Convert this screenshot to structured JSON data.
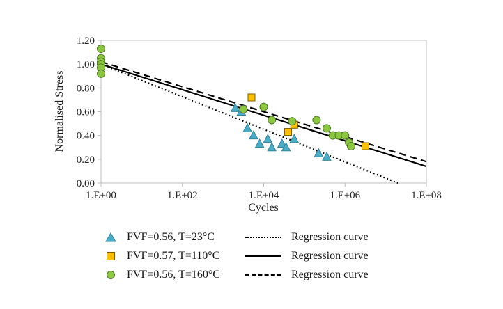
{
  "axes": {
    "x_title": "Cycles",
    "y_title": "Normalised Stress"
  },
  "chart_data": {
    "type": "scatter",
    "x_scale": "log10",
    "x_log_range": [
      0,
      8
    ],
    "ylim": [
      0,
      1.2
    ],
    "grid": false,
    "border_color": "#BFBFBF",
    "x_ticks": [
      {
        "log": 0,
        "label": "1.E+00"
      },
      {
        "log": 2,
        "label": "1.E+02"
      },
      {
        "log": 4,
        "label": "1.E+04"
      },
      {
        "log": 6,
        "label": "1.E+06"
      },
      {
        "log": 8,
        "label": "1.E+08"
      }
    ],
    "y_ticks": [
      {
        "value": 0.0,
        "label": "0.00"
      },
      {
        "value": 0.2,
        "label": "0.20"
      },
      {
        "value": 0.4,
        "label": "0.40"
      },
      {
        "value": 0.6,
        "label": "0.60"
      },
      {
        "value": 0.8,
        "label": "0.80"
      },
      {
        "value": 1.0,
        "label": "1.00"
      },
      {
        "value": 1.2,
        "label": "1.20"
      }
    ],
    "series": [
      {
        "name": "FVF=0.56, T=23°C",
        "marker": "triangle",
        "fill": "#4BACC6",
        "stroke": "#31859C",
        "points_log_x_y": [
          [
            3.3,
            0.63
          ],
          [
            3.45,
            0.6
          ],
          [
            3.6,
            0.46
          ],
          [
            3.75,
            0.4
          ],
          [
            3.9,
            0.33
          ],
          [
            4.1,
            0.37
          ],
          [
            4.2,
            0.3
          ],
          [
            4.45,
            0.33
          ],
          [
            4.55,
            0.3
          ],
          [
            4.75,
            0.37
          ],
          [
            5.35,
            0.25
          ],
          [
            5.55,
            0.22
          ]
        ]
      },
      {
        "name": "FVF=0.57, T=110°C",
        "marker": "square",
        "fill": "#FFC000",
        "stroke": "#7F6000",
        "points_log_x_y": [
          [
            3.7,
            0.72
          ],
          [
            4.6,
            0.43
          ],
          [
            4.75,
            0.49
          ],
          [
            6.5,
            0.31
          ]
        ]
      },
      {
        "name": "FVF=0.56, T=160°C",
        "marker": "circle",
        "fill": "#8DC63F",
        "stroke": "#4E7A27",
        "points_log_x_y": [
          [
            0,
            1.13
          ],
          [
            0,
            1.05
          ],
          [
            0,
            1.02
          ],
          [
            0,
            1.0
          ],
          [
            0,
            0.97
          ],
          [
            0,
            0.92
          ],
          [
            3.5,
            0.62
          ],
          [
            4.0,
            0.64
          ],
          [
            4.2,
            0.53
          ],
          [
            4.7,
            0.52
          ],
          [
            5.3,
            0.53
          ],
          [
            5.55,
            0.46
          ],
          [
            5.7,
            0.4
          ],
          [
            5.85,
            0.4
          ],
          [
            6.0,
            0.4
          ],
          [
            6.1,
            0.34
          ],
          [
            6.15,
            0.31
          ]
        ]
      }
    ],
    "regressions": [
      {
        "label": "Regression curve",
        "style": "dotted",
        "color": "#000000",
        "points_log_x_y": [
          [
            0,
            1.0
          ],
          [
            7.3,
            0.0
          ]
        ]
      },
      {
        "label": "Regression curve",
        "style": "solid",
        "color": "#000000",
        "points_log_x_y": [
          [
            0,
            1.0
          ],
          [
            8.0,
            0.14
          ]
        ]
      },
      {
        "label": "Regression curve",
        "style": "dashed",
        "color": "#000000",
        "points_log_x_y": [
          [
            0,
            1.02
          ],
          [
            8.0,
            0.18
          ]
        ]
      }
    ]
  }
}
